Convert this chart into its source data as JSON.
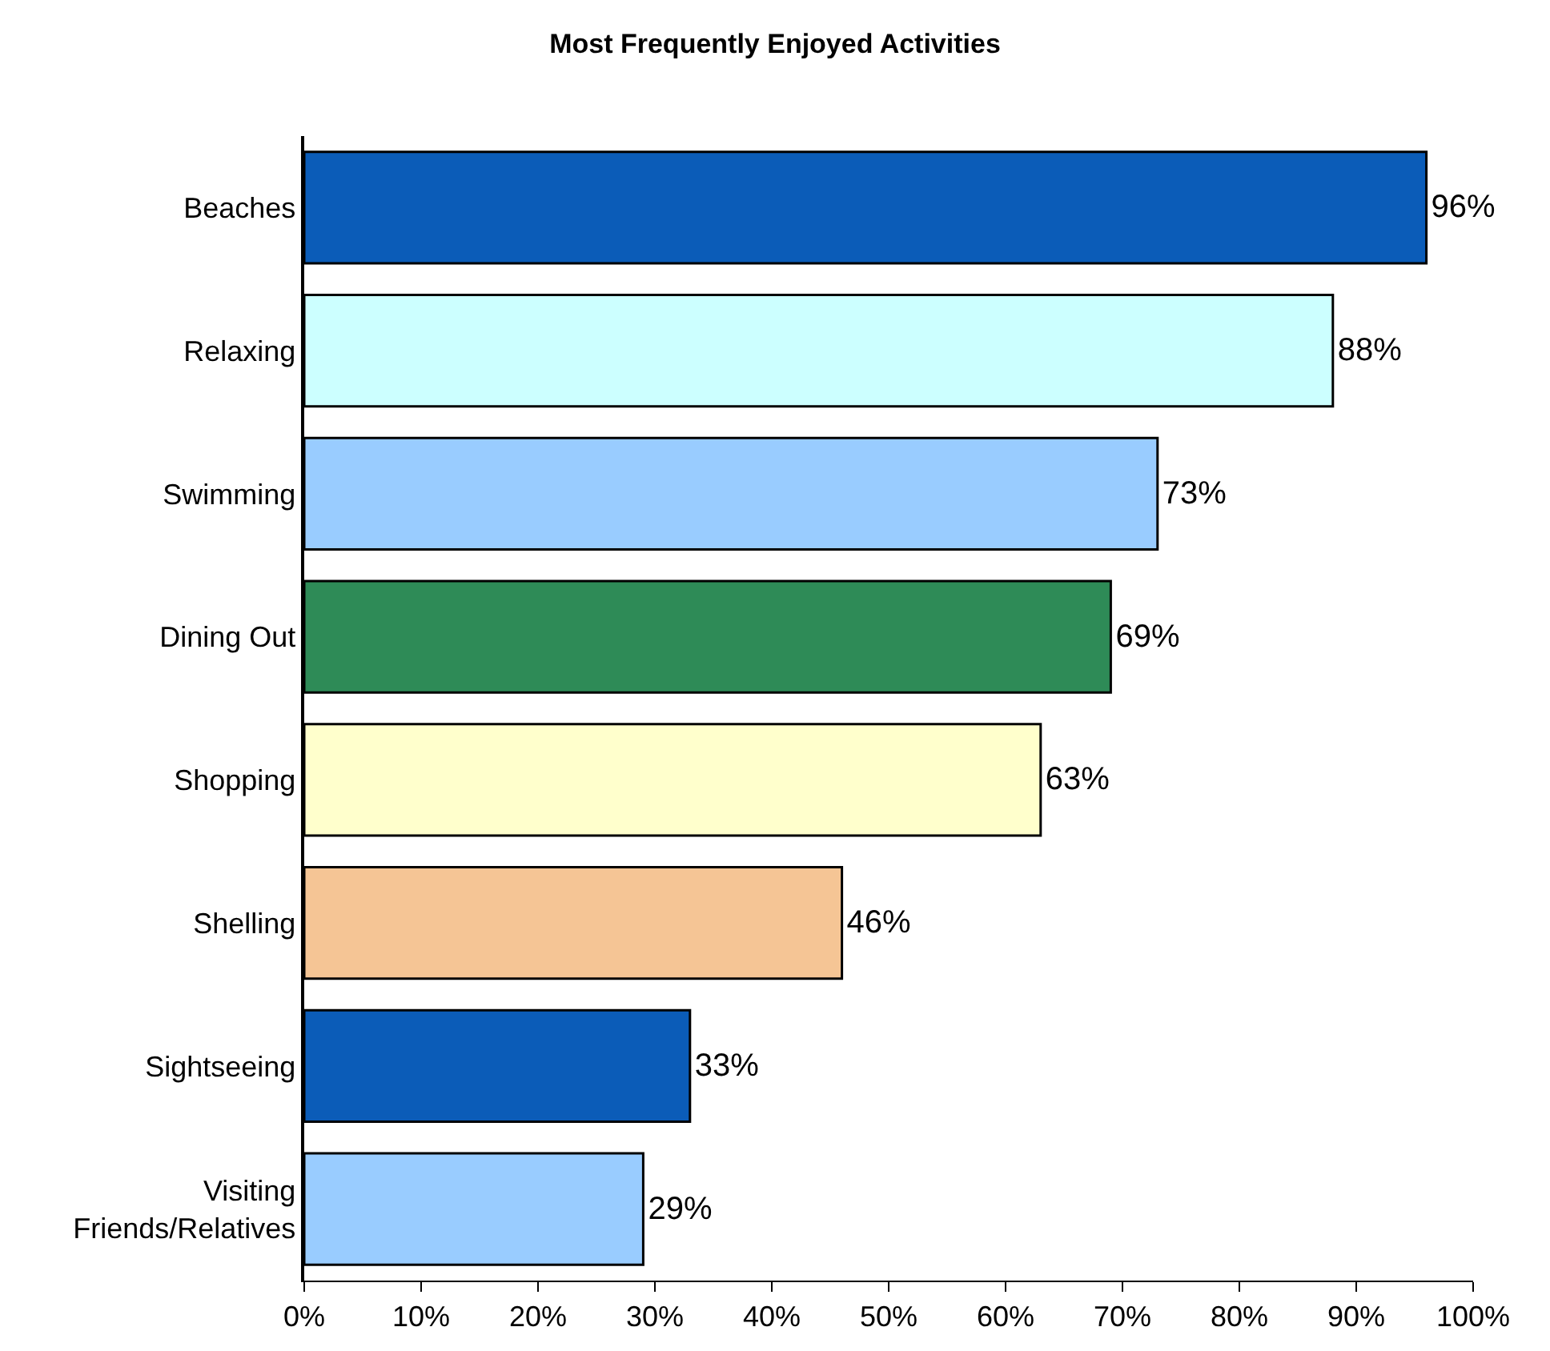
{
  "chart_data": {
    "type": "bar",
    "orientation": "horizontal",
    "title": "Most Frequently Enjoyed Activities",
    "categories": [
      "Beaches",
      "Relaxing",
      "Swimming",
      "Dining Out",
      "Shopping",
      "Shelling",
      "Sightseeing",
      "Visiting Friends/Relatives"
    ],
    "values": [
      96,
      88,
      73,
      69,
      63,
      46,
      33,
      29
    ],
    "colors": [
      "#0b5cb8",
      "#ccffff",
      "#99ccff",
      "#2e8b57",
      "#ffffcc",
      "#f5c595",
      "#0b5cb8",
      "#99ccff"
    ],
    "value_labels": [
      "96%",
      "88%",
      "73%",
      "69%",
      "63%",
      "46%",
      "33%",
      "29%"
    ],
    "xlim": [
      0,
      100
    ],
    "xticks": [
      {
        "value": 0,
        "label": "0%"
      },
      {
        "value": 10,
        "label": "10%"
      },
      {
        "value": 20,
        "label": "20%"
      },
      {
        "value": 30,
        "label": "30%"
      },
      {
        "value": 40,
        "label": "40%"
      },
      {
        "value": 50,
        "label": "50%"
      },
      {
        "value": 60,
        "label": "60%"
      },
      {
        "value": 70,
        "label": "70%"
      },
      {
        "value": 80,
        "label": "80%"
      },
      {
        "value": 90,
        "label": "90%"
      },
      {
        "value": 100,
        "label": "100%"
      }
    ]
  }
}
